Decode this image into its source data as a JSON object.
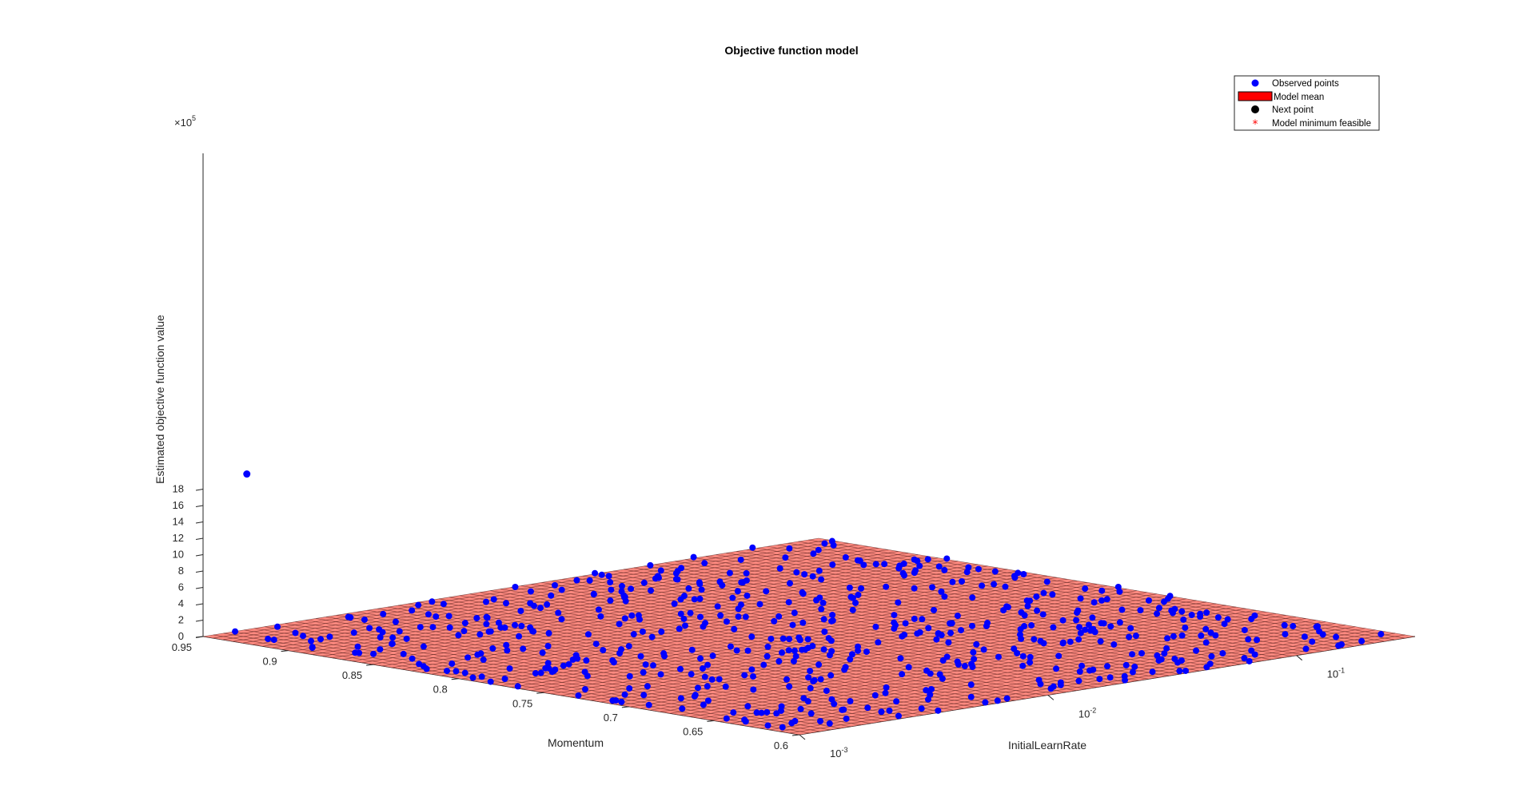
{
  "chart_data": {
    "type": "scatter",
    "subtype": "3d-surface-with-scatter",
    "title": "Objective function model",
    "xlabel": "InitialLearnRate",
    "ylabel": "Momentum",
    "zlabel": "Estimated objective function value",
    "x_scale": "log",
    "x_ticks": [
      {
        "value": 0.001,
        "base": "10",
        "exp": "-3"
      },
      {
        "value": 0.01,
        "base": "10",
        "exp": "-2"
      },
      {
        "value": 0.1,
        "base": "10",
        "exp": "-1"
      }
    ],
    "xlim": [
      0.001,
      0.3
    ],
    "y_ticks": [
      "0.6",
      "0.65",
      "0.7",
      "0.75",
      "0.8",
      "0.85",
      "0.9",
      "0.95"
    ],
    "ylim": [
      0.6,
      0.95
    ],
    "z_ticks": [
      "0",
      "2",
      "4",
      "6",
      "8",
      "10",
      "12",
      "14",
      "16",
      "18"
    ],
    "zlim": [
      0,
      20
    ],
    "z_multiplier": {
      "base": "×10",
      "exp": "5"
    },
    "outlier_point": {
      "x": 0.0015,
      "y": 0.95,
      "z": 19
    },
    "surface_color": "#ff8a80",
    "observed_color": "#0000ff",
    "legend_position": "top-right",
    "legend": [
      {
        "label": "Observed points",
        "marker": "dot-blue",
        "color": "#0000ff"
      },
      {
        "label": "Model mean",
        "marker": "patch-red",
        "color": "#ff0000"
      },
      {
        "label": "Next point",
        "marker": "dot-black",
        "color": "#000000"
      },
      {
        "label": "Model minimum feasible",
        "marker": "asterisk-red",
        "color": "#ff0000"
      }
    ]
  }
}
